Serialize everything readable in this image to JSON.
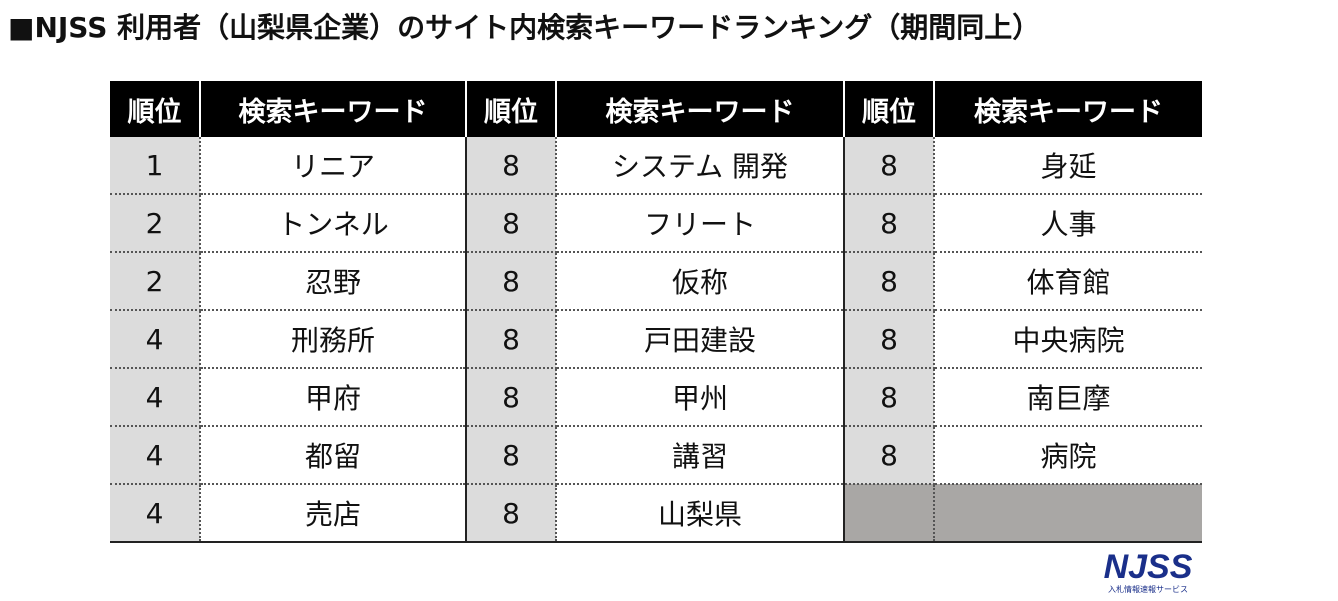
{
  "title": "■NJSS 利用者（山梨県企業）のサイト内検索キーワードランキング（期間同上）",
  "headers": [
    "順位",
    "検索キーワード",
    "順位",
    "検索キーワード",
    "順位",
    "検索キーワード"
  ],
  "rows": [
    [
      "1",
      "リニア",
      "8",
      "システム 開発",
      "8",
      "身延"
    ],
    [
      "2",
      "トンネル",
      "8",
      "フリート",
      "8",
      "人事"
    ],
    [
      "2",
      "忍野",
      "8",
      "仮称",
      "8",
      "体育館"
    ],
    [
      "4",
      "刑務所",
      "8",
      "戸田建設",
      "8",
      "中央病院"
    ],
    [
      "4",
      "甲府",
      "8",
      "甲州",
      "8",
      "南巨摩"
    ],
    [
      "4",
      "都留",
      "8",
      "講習",
      "8",
      "病院"
    ],
    [
      "4",
      "売店",
      "8",
      "山梨県",
      "",
      ""
    ]
  ],
  "logo": {
    "text": "NJSS",
    "subtext": "入札情報速報サービス",
    "color": "#1a2f8a"
  }
}
